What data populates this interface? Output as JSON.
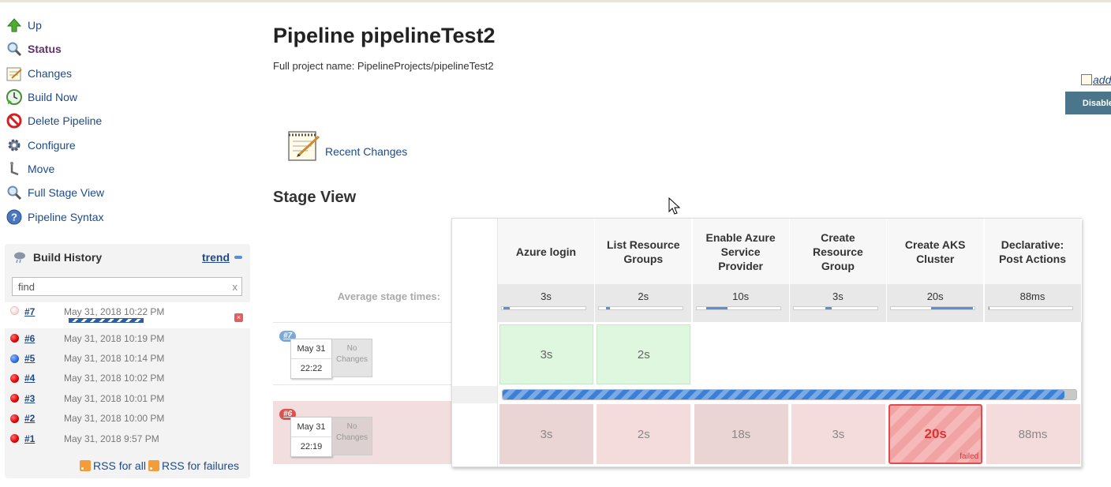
{
  "sidebar": {
    "items": [
      {
        "label": "Up",
        "icon": "up-arrow-icon"
      },
      {
        "label": "Status",
        "icon": "magnifier-icon"
      },
      {
        "label": "Changes",
        "icon": "notepad-icon"
      },
      {
        "label": "Build Now",
        "icon": "clock-play-icon"
      },
      {
        "label": "Delete Pipeline",
        "icon": "no-entry-icon"
      },
      {
        "label": "Configure",
        "icon": "gear-icon"
      },
      {
        "label": "Move",
        "icon": "move-icon"
      },
      {
        "label": "Full Stage View",
        "icon": "magnifier-icon"
      },
      {
        "label": "Pipeline Syntax",
        "icon": "help-icon"
      }
    ]
  },
  "build_history": {
    "title": "Build History",
    "trend_label": "trend",
    "search_value": "find",
    "search_clear": "x",
    "builds": [
      {
        "num": "#7",
        "date": "May 31, 2018 10:22 PM",
        "status": "running",
        "progress": 1.0
      },
      {
        "num": "#6",
        "date": "May 31, 2018 10:19 PM",
        "status": "failed"
      },
      {
        "num": "#5",
        "date": "May 31, 2018 10:14 PM",
        "status": "success"
      },
      {
        "num": "#4",
        "date": "May 31, 2018 10:02 PM",
        "status": "failed"
      },
      {
        "num": "#3",
        "date": "May 31, 2018 10:01 PM",
        "status": "failed"
      },
      {
        "num": "#2",
        "date": "May 31, 2018 10:00 PM",
        "status": "failed"
      },
      {
        "num": "#1",
        "date": "May 31, 2018 9:57 PM",
        "status": "failed"
      }
    ],
    "rss_all": "RSS for all",
    "rss_failures": "RSS for failures"
  },
  "main": {
    "title": "Pipeline pipelineTest2",
    "full_name": "Full project name: PipelineProjects/pipelineTest2",
    "add_description": "add",
    "disable_button": "Disable",
    "recent_changes": "Recent Changes",
    "stage_view_title": "Stage View"
  },
  "stage_view": {
    "average_label": "Average stage times:",
    "stages": [
      {
        "name": "Azure login",
        "avg": "3s",
        "avg_fraction": 0.03
      },
      {
        "name": "List Resource Groups",
        "avg": "2s",
        "avg_fraction": 0.02
      },
      {
        "name": "Enable Azure Service Provider",
        "avg": "10s",
        "avg_fraction": 0.1
      },
      {
        "name": "Create Resource Group",
        "avg": "3s",
        "avg_fraction": 0.03
      },
      {
        "name": "Create AKS Cluster",
        "avg": "20s",
        "avg_fraction": 0.2
      },
      {
        "name": "Declarative: Post Actions",
        "avg": "88ms",
        "avg_fraction": 0.0
      }
    ],
    "runs": [
      {
        "badge": "#7",
        "date": "May 31",
        "time": "22:22",
        "changes": "No Changes",
        "progress": 0.98,
        "cells": [
          {
            "value": "3s",
            "state": "success"
          },
          {
            "value": "2s",
            "state": "success"
          },
          {
            "value": "",
            "state": "in-progress"
          },
          {
            "value": "",
            "state": "empty"
          },
          {
            "value": "",
            "state": "empty"
          },
          {
            "value": "",
            "state": "empty"
          }
        ]
      },
      {
        "badge": "#6",
        "date": "May 31",
        "time": "22:19",
        "changes": "No Changes",
        "cells": [
          {
            "value": "3s",
            "state": "failed-run"
          },
          {
            "value": "2s",
            "state": "failed-run"
          },
          {
            "value": "18s",
            "state": "failed-run"
          },
          {
            "value": "3s",
            "state": "failed-run"
          },
          {
            "value": "20s",
            "state": "failed",
            "tag": "failed"
          },
          {
            "value": "88ms",
            "state": "failed-run"
          }
        ]
      }
    ]
  },
  "colors": {
    "link": "#204a87",
    "disable_button": "#4b758b",
    "success_cell": "#dff7df",
    "failed_cell": "#f2dede",
    "failed_border": "#e34c4c",
    "progress_blue": "#3c7fd6"
  }
}
